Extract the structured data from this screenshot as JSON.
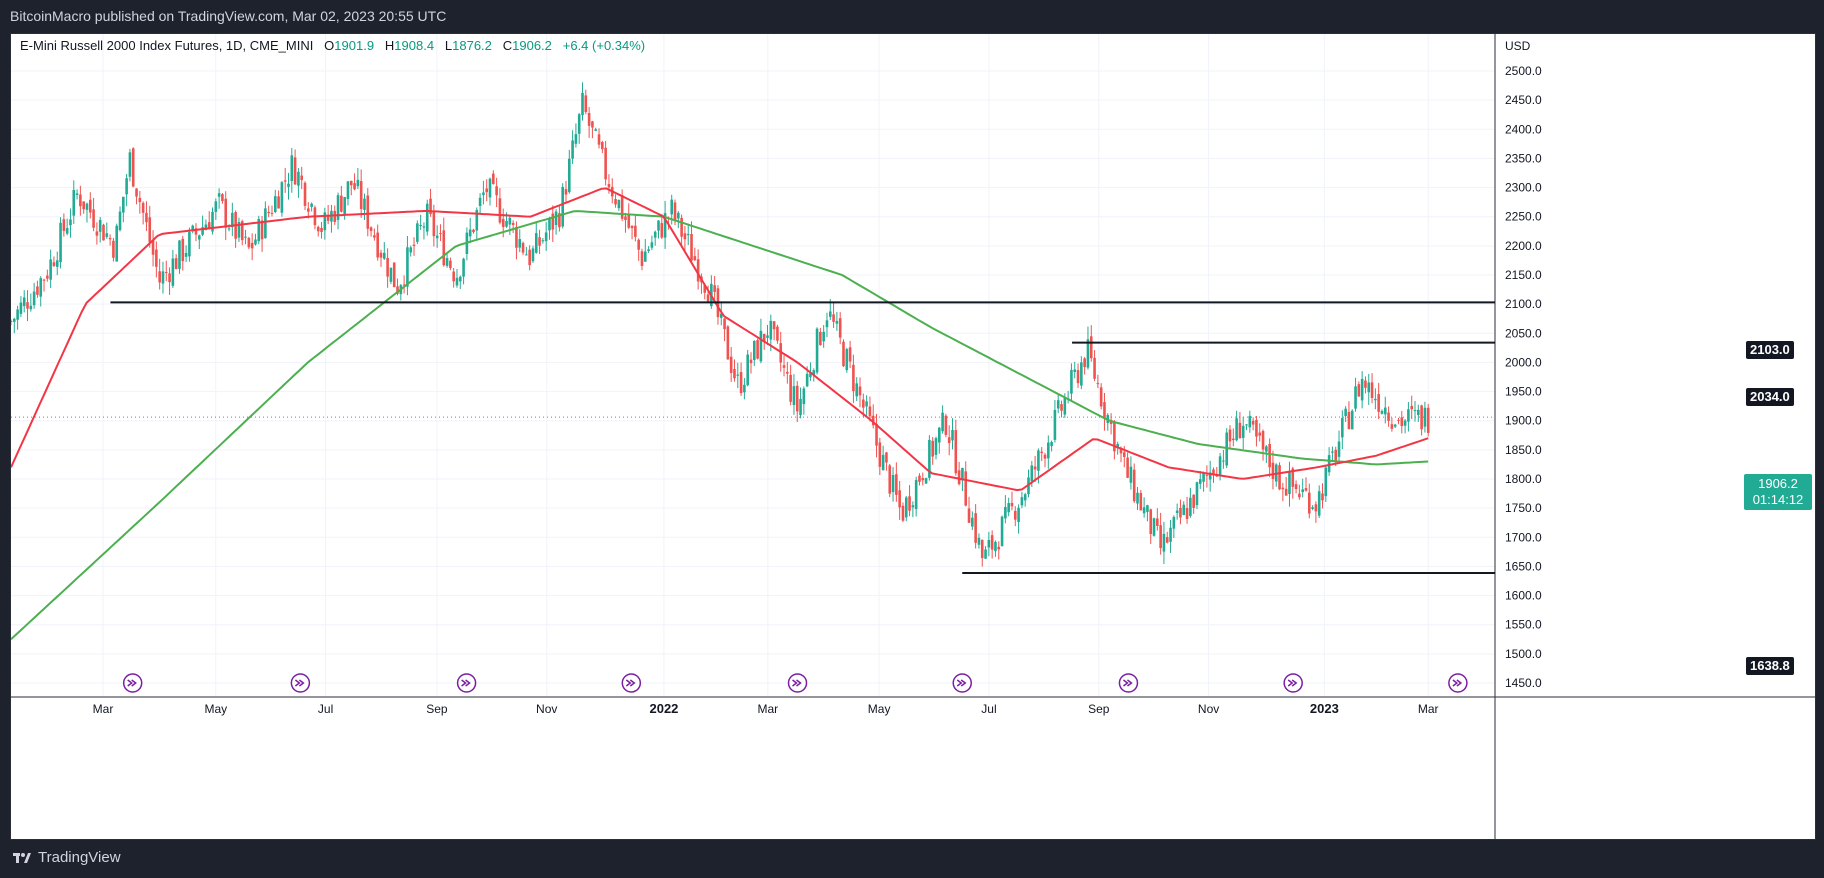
{
  "header": {
    "published": "BitcoinMacro published on TradingView.com, Mar 02, 2023 20:55 UTC"
  },
  "legend": {
    "symbol": "E-Mini Russell 2000 Index Futures, 1D, CME_MINI",
    "open_label": "O",
    "open": "1901.9",
    "high_label": "H",
    "high": "1908.4",
    "low_label": "L",
    "low": "1876.2",
    "close_label": "C",
    "close": "1906.2",
    "change": "+6.4 (+0.34%)"
  },
  "axis": {
    "currency": "USD",
    "last_price": "1906.2",
    "countdown": "01:14:12"
  },
  "levels": [
    {
      "label": "2103.0",
      "value": 2103.0
    },
    {
      "label": "2034.0",
      "value": 2034.0
    },
    {
      "label": "1638.8",
      "value": 1638.8
    }
  ],
  "footer": {
    "brand": "TradingView"
  },
  "colors": {
    "up": "#22ab94",
    "down": "#ef5350",
    "ma_fast": "#f23645",
    "ma_slow": "#4caf50",
    "level": "#131722",
    "event_icon": "#7b1fa2"
  },
  "chart_data": {
    "type": "candlestick",
    "title": "E-Mini Russell 2000 Index Futures, 1D, CME_MINI",
    "ylabel": "USD",
    "ylim": [
      1420,
      2560
    ],
    "y_ticks": [
      1450,
      1500,
      1550,
      1600,
      1650,
      1700,
      1750,
      1800,
      1850,
      1900,
      1950,
      2000,
      2050,
      2100,
      2150,
      2200,
      2250,
      2300,
      2350,
      2400,
      2450,
      2500
    ],
    "x_ticks": [
      "Mar",
      "May",
      "Jul",
      "Sep",
      "Nov",
      "2022",
      "Mar",
      "May",
      "Jul",
      "Sep",
      "Nov",
      "2023",
      "Mar"
    ],
    "price_path": [
      [
        0,
        2070
      ],
      [
        0.025,
        2160
      ],
      [
        0.045,
        2290
      ],
      [
        0.07,
        2200
      ],
      [
        0.08,
        2350
      ],
      [
        0.1,
        2140
      ],
      [
        0.14,
        2270
      ],
      [
        0.16,
        2190
      ],
      [
        0.19,
        2340
      ],
      [
        0.21,
        2230
      ],
      [
        0.23,
        2310
      ],
      [
        0.26,
        2130
      ],
      [
        0.28,
        2250
      ],
      [
        0.3,
        2150
      ],
      [
        0.32,
        2300
      ],
      [
        0.35,
        2180
      ],
      [
        0.37,
        2260
      ],
      [
        0.385,
        2440
      ],
      [
        0.4,
        2330
      ],
      [
        0.425,
        2180
      ],
      [
        0.445,
        2260
      ],
      [
        0.47,
        2130
      ],
      [
        0.49,
        1960
      ],
      [
        0.51,
        2060
      ],
      [
        0.53,
        1920
      ],
      [
        0.55,
        2090
      ],
      [
        0.565,
        1990
      ],
      [
        0.6,
        1740
      ],
      [
        0.63,
        1900
      ],
      [
        0.655,
        1660
      ],
      [
        0.685,
        1790
      ],
      [
        0.725,
        2020
      ],
      [
        0.75,
        1820
      ],
      [
        0.775,
        1680
      ],
      [
        0.8,
        1780
      ],
      [
        0.83,
        1900
      ],
      [
        0.855,
        1800
      ],
      [
        0.88,
        1760
      ],
      [
        0.91,
        1970
      ],
      [
        0.935,
        1900
      ],
      [
        0.955,
        1906.2
      ]
    ],
    "ma_fast": [
      [
        0,
        1820
      ],
      [
        0.05,
        2100
      ],
      [
        0.1,
        2220
      ],
      [
        0.2,
        2250
      ],
      [
        0.28,
        2260
      ],
      [
        0.35,
        2250
      ],
      [
        0.4,
        2300
      ],
      [
        0.44,
        2250
      ],
      [
        0.48,
        2080
      ],
      [
        0.53,
        2000
      ],
      [
        0.58,
        1900
      ],
      [
        0.62,
        1810
      ],
      [
        0.68,
        1780
      ],
      [
        0.73,
        1870
      ],
      [
        0.78,
        1820
      ],
      [
        0.83,
        1800
      ],
      [
        0.88,
        1820
      ],
      [
        0.92,
        1840
      ],
      [
        0.955,
        1870
      ]
    ],
    "ma_slow": [
      [
        0,
        1525
      ],
      [
        0.1,
        1760
      ],
      [
        0.2,
        2000
      ],
      [
        0.3,
        2200
      ],
      [
        0.38,
        2260
      ],
      [
        0.44,
        2250
      ],
      [
        0.5,
        2200
      ],
      [
        0.56,
        2150
      ],
      [
        0.62,
        2060
      ],
      [
        0.68,
        1980
      ],
      [
        0.74,
        1900
      ],
      [
        0.8,
        1860
      ],
      [
        0.87,
        1835
      ],
      [
        0.92,
        1825
      ],
      [
        0.955,
        1830
      ]
    ],
    "horizontal_levels": [
      2103.0,
      2034.0,
      1638.8
    ]
  }
}
